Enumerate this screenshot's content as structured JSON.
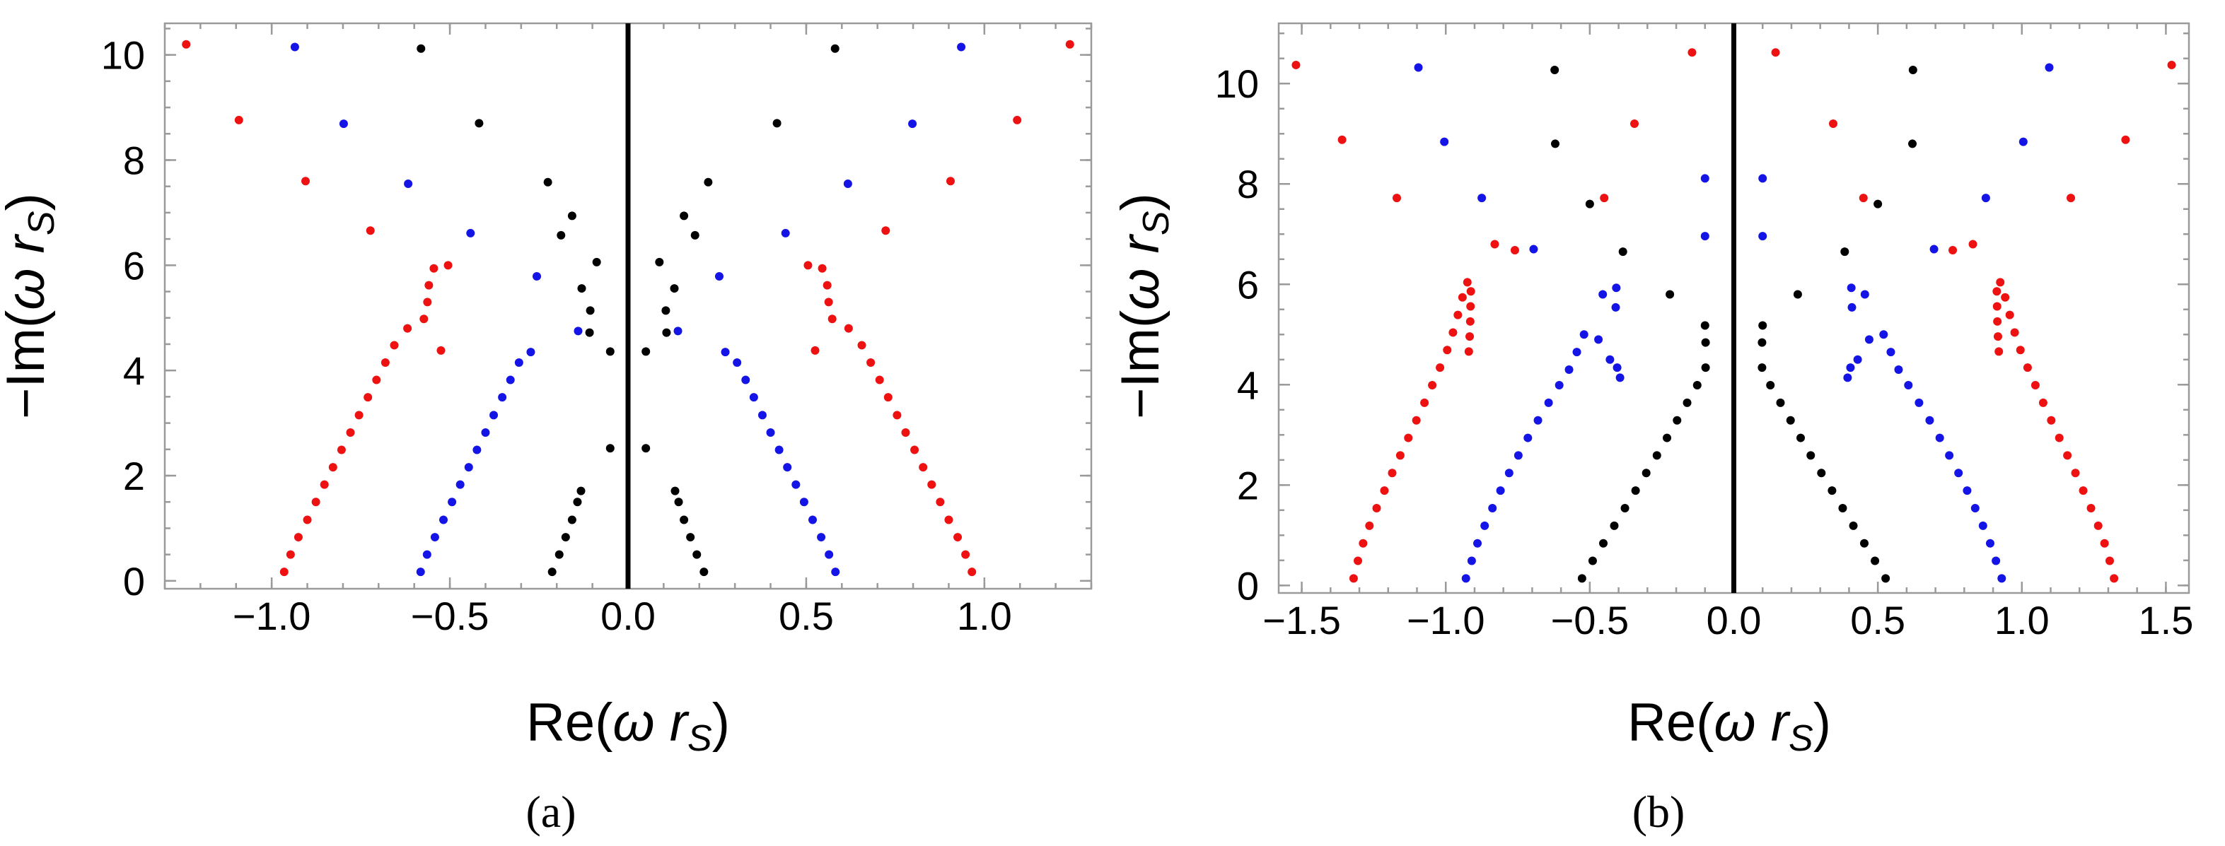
{
  "colors": {
    "red": "#ee1111",
    "blue": "#1414e6",
    "black": "#000000"
  },
  "chart_data": [
    {
      "type": "scatter",
      "panel_label": "(a)",
      "title": "",
      "xlabel_main": "Re(",
      "xlabel_var": "ω r",
      "xlabel_sub": "S",
      "xlabel_close": ")",
      "ylabel_main": "−Im(",
      "ylabel_var": "ω r",
      "ylabel_sub": "S",
      "ylabel_close": ")",
      "xlim": [
        -1.3,
        1.3
      ],
      "ylim": [
        -0.15,
        10.6
      ],
      "xticks": [
        -1.0,
        -0.5,
        0.0,
        0.5,
        1.0
      ],
      "xtick_labels": [
        "−1.0",
        "−0.5",
        "0.0",
        "0.5",
        "1.0"
      ],
      "yticks": [
        0,
        2,
        4,
        6,
        8,
        10
      ],
      "ytick_labels": [
        "0",
        "2",
        "4",
        "6",
        "8",
        "10"
      ],
      "zero_line_x": 0,
      "series": [
        {
          "name": "red",
          "color": "#ee1111",
          "mirror": true,
          "points": [
            [
              0.965,
              0.17
            ],
            [
              0.947,
              0.5
            ],
            [
              0.925,
              0.83
            ],
            [
              0.9,
              1.16
            ],
            [
              0.876,
              1.5
            ],
            [
              0.852,
              1.83
            ],
            [
              0.828,
              2.16
            ],
            [
              0.804,
              2.49
            ],
            [
              0.779,
              2.82
            ],
            [
              0.755,
              3.15
            ],
            [
              0.73,
              3.49
            ],
            [
              0.706,
              3.82
            ],
            [
              0.681,
              4.15
            ],
            [
              0.656,
              4.48
            ],
            [
              0.619,
              4.8
            ],
            [
              0.573,
              4.98
            ],
            [
              0.563,
              5.3
            ],
            [
              0.559,
              5.62
            ],
            [
              0.545,
              5.94
            ],
            [
              0.505,
              6.0
            ],
            [
              0.723,
              6.66
            ],
            [
              0.905,
              7.6
            ],
            [
              1.092,
              8.76
            ],
            [
              1.24,
              10.2
            ],
            [
              0.525,
              4.38
            ]
          ]
        },
        {
          "name": "blue",
          "color": "#1414e6",
          "mirror": true,
          "points": [
            [
              0.582,
              0.17
            ],
            [
              0.564,
              0.5
            ],
            [
              0.542,
              0.83
            ],
            [
              0.518,
              1.16
            ],
            [
              0.494,
              1.5
            ],
            [
              0.471,
              1.83
            ],
            [
              0.447,
              2.16
            ],
            [
              0.424,
              2.49
            ],
            [
              0.4,
              2.82
            ],
            [
              0.377,
              3.15
            ],
            [
              0.353,
              3.49
            ],
            [
              0.33,
              3.82
            ],
            [
              0.306,
              4.15
            ],
            [
              0.273,
              4.35
            ],
            [
              0.14,
              4.75
            ],
            [
              0.256,
              5.79
            ],
            [
              0.442,
              6.61
            ],
            [
              0.617,
              7.55
            ],
            [
              0.798,
              8.69
            ],
            [
              0.935,
              10.15
            ]
          ]
        },
        {
          "name": "black",
          "color": "#000000",
          "mirror": true,
          "points": [
            [
              0.213,
              0.17
            ],
            [
              0.193,
              0.5
            ],
            [
              0.175,
              0.83
            ],
            [
              0.157,
              1.16
            ],
            [
              0.142,
              1.5
            ],
            [
              0.132,
              1.71
            ],
            [
              0.05,
              2.52
            ],
            [
              0.05,
              4.36
            ],
            [
              0.108,
              4.72
            ],
            [
              0.106,
              5.14
            ],
            [
              0.13,
              5.56
            ],
            [
              0.088,
              6.06
            ],
            [
              0.188,
              6.57
            ],
            [
              0.157,
              6.94
            ],
            [
              0.225,
              7.58
            ],
            [
              0.418,
              8.7
            ],
            [
              0.581,
              10.12
            ]
          ]
        }
      ]
    },
    {
      "type": "scatter",
      "panel_label": "(b)",
      "title": "",
      "xlabel_main": "Re(",
      "xlabel_var": "ω r",
      "xlabel_sub": "S",
      "xlabel_close": ")",
      "ylabel_main": "−Im(",
      "ylabel_var": "ω r",
      "ylabel_sub": "S",
      "ylabel_close": ")",
      "xlim": [
        -1.58,
        1.58
      ],
      "ylim": [
        -0.15,
        11.2
      ],
      "xticks": [
        -1.5,
        -1.0,
        -0.5,
        0.0,
        0.5,
        1.0,
        1.5
      ],
      "xtick_labels": [
        "−1.5",
        "−1.0",
        "−0.5",
        "0.0",
        "0.5",
        "1.0",
        "1.5"
      ],
      "yticks": [
        0,
        2,
        4,
        6,
        8,
        10
      ],
      "ytick_labels": [
        "0",
        "2",
        "4",
        "6",
        "8",
        "10"
      ],
      "zero_line_x": 0,
      "series": [
        {
          "name": "red",
          "color": "#ee1111",
          "mirror": true,
          "points": [
            [
              1.32,
              0.14
            ],
            [
              1.305,
              0.49
            ],
            [
              1.287,
              0.84
            ],
            [
              1.265,
              1.19
            ],
            [
              1.24,
              1.54
            ],
            [
              1.213,
              1.89
            ],
            [
              1.186,
              2.24
            ],
            [
              1.158,
              2.59
            ],
            [
              1.13,
              2.94
            ],
            [
              1.102,
              3.29
            ],
            [
              1.074,
              3.64
            ],
            [
              1.047,
              3.99
            ],
            [
              1.02,
              4.34
            ],
            [
              0.995,
              4.69
            ],
            [
              0.975,
              5.04
            ],
            [
              0.958,
              5.39
            ],
            [
              0.942,
              5.74
            ],
            [
              0.925,
              6.04
            ],
            [
              0.913,
              5.86
            ],
            [
              0.914,
              5.56
            ],
            [
              0.915,
              5.26
            ],
            [
              0.917,
              4.96
            ],
            [
              0.92,
              4.66
            ],
            [
              1.17,
              7.72
            ],
            [
              1.36,
              8.88
            ],
            [
              1.52,
              10.37
            ],
            [
              0.83,
              6.8
            ],
            [
              0.76,
              6.68
            ],
            [
              0.45,
              7.72
            ],
            [
              0.345,
              9.2
            ],
            [
              0.145,
              10.62
            ]
          ]
        },
        {
          "name": "blue",
          "color": "#1414e6",
          "mirror": true,
          "points": [
            [
              0.93,
              0.14
            ],
            [
              0.91,
              0.49
            ],
            [
              0.89,
              0.84
            ],
            [
              0.865,
              1.19
            ],
            [
              0.838,
              1.54
            ],
            [
              0.81,
              1.89
            ],
            [
              0.78,
              2.24
            ],
            [
              0.748,
              2.59
            ],
            [
              0.715,
              2.94
            ],
            [
              0.68,
              3.29
            ],
            [
              0.643,
              3.64
            ],
            [
              0.606,
              3.99
            ],
            [
              0.572,
              4.3
            ],
            [
              0.545,
              4.65
            ],
            [
              0.52,
              5.0
            ],
            [
              0.408,
              5.93
            ],
            [
              0.455,
              5.8
            ],
            [
              0.405,
              4.34
            ],
            [
              0.395,
              4.14
            ],
            [
              0.43,
              4.5
            ],
            [
              0.47,
              4.9
            ],
            [
              0.41,
              5.54
            ],
            [
              0.695,
              6.7
            ],
            [
              0.875,
              7.72
            ],
            [
              1.005,
              8.84
            ],
            [
              1.095,
              10.32
            ],
            [
              0.1,
              6.96
            ],
            [
              0.1,
              8.11
            ]
          ]
        },
        {
          "name": "black",
          "color": "#000000",
          "mirror": true,
          "points": [
            [
              0.527,
              0.14
            ],
            [
              0.49,
              0.49
            ],
            [
              0.453,
              0.84
            ],
            [
              0.415,
              1.19
            ],
            [
              0.378,
              1.54
            ],
            [
              0.341,
              1.89
            ],
            [
              0.304,
              2.24
            ],
            [
              0.267,
              2.59
            ],
            [
              0.232,
              2.94
            ],
            [
              0.197,
              3.29
            ],
            [
              0.162,
              3.64
            ],
            [
              0.127,
              3.99
            ],
            [
              0.098,
              4.34
            ],
            [
              0.098,
              4.84
            ],
            [
              0.1,
              5.18
            ],
            [
              0.222,
              5.8
            ],
            [
              0.385,
              6.65
            ],
            [
              0.5,
              7.6
            ],
            [
              0.62,
              8.8
            ],
            [
              0.622,
              10.27
            ]
          ]
        }
      ]
    }
  ]
}
